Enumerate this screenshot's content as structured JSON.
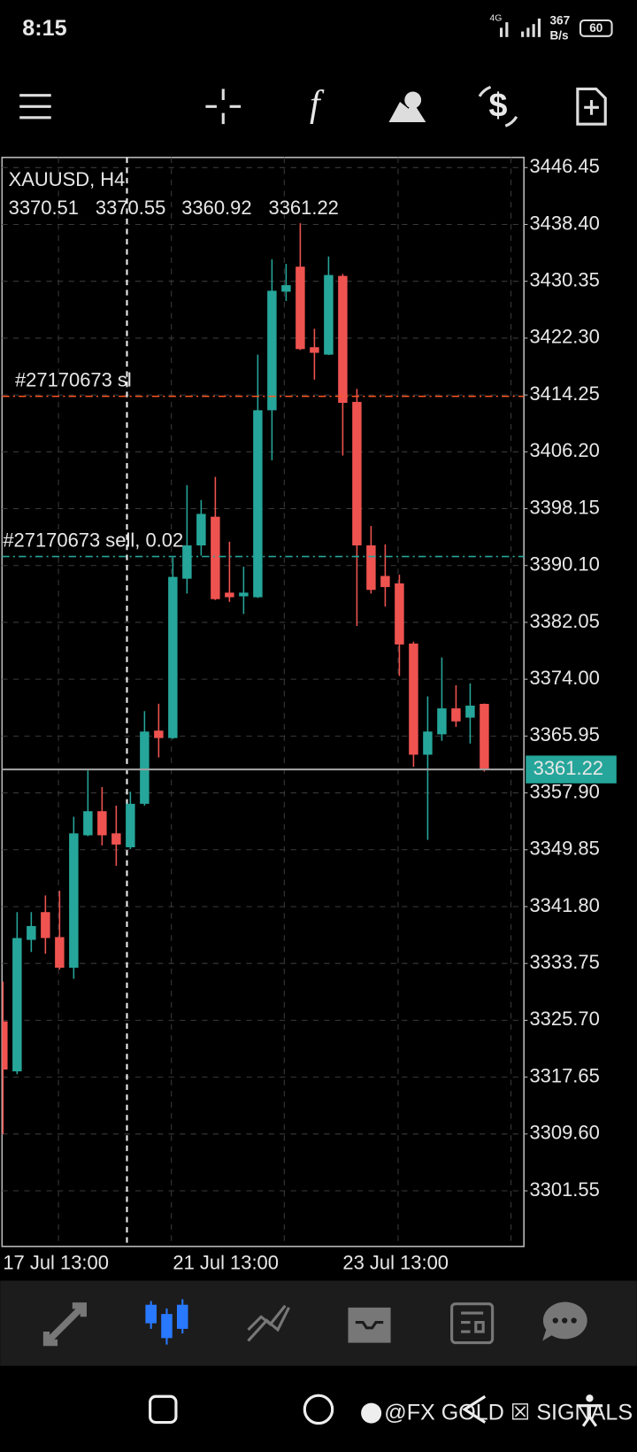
{
  "status_bar": {
    "time": "8:15",
    "network": "4G",
    "speed": "367",
    "speed_unit": "B/s",
    "battery": "60"
  },
  "chart_data": {
    "type": "candlestick",
    "title": "XAUUSD, H4",
    "categories": [
      "17 Jul 13:00",
      null,
      null,
      null,
      null,
      null,
      null,
      null,
      null,
      null,
      null,
      null,
      "21 Jul 13:00",
      null,
      null,
      null,
      null,
      null,
      null,
      null,
      null,
      null,
      null,
      null,
      "23 Jul 13:00",
      null,
      null,
      null,
      null,
      null,
      null,
      null,
      null,
      null,
      null
    ],
    "open": [
      3325.55,
      3318.47,
      3337.09,
      3341.02,
      3337.48,
      3333.15,
      3351.9,
      3355.31,
      3352.17,
      3350.2,
      3356.36,
      3366.72,
      3365.67,
      3388.23,
      3392.95,
      3397.01,
      3386.26,
      3385.74,
      3385.61,
      3412.09,
      3428.88,
      3432.42,
      3421.01,
      3419.96,
      3431.11,
      3413.27,
      3392.95,
      3388.62,
      3387.57,
      3379.05,
      3363.31,
      3366.2,
      3369.87,
      3368.56,
      3370.51
    ],
    "high": [
      3331.19,
      3341.02,
      3341.02,
      3343.38,
      3344.04,
      3354.53,
      3361.08,
      3358.72,
      3356.1,
      3358.07,
      3369.48,
      3370.53,
      3391.24,
      3401.47,
      3399.37,
      3402.65,
      3393.47,
      3389.93,
      3419.96,
      3433.47,
      3432.81,
      3438.58,
      3423.63,
      3433.86,
      3431.4,
      3415.11,
      3395.7,
      3393.08,
      3388.8,
      3379.31,
      3371.57,
      3377.08,
      3373.15,
      3373.41,
      3370.55
    ],
    "low": [
      3309.55,
      3318.07,
      3335.38,
      3335.12,
      3332.89,
      3331.58,
      3351.77,
      3350.46,
      3347.58,
      3349.95,
      3356.1,
      3362.92,
      3365.54,
      3386.13,
      3391.51,
      3385.21,
      3384.95,
      3383.24,
      3385.5,
      3405.01,
      3427.57,
      3420.62,
      3416.42,
      3419.9,
      3405.67,
      3381.54,
      3386.13,
      3384.29,
      3374.46,
      3361.61,
      3351.25,
      3365.28,
      3367.25,
      3364.89,
      3360.92
    ],
    "close": [
      3318.73,
      3337.35,
      3339.05,
      3337.35,
      3333.15,
      3352.17,
      3355.31,
      3351.9,
      3350.59,
      3356.36,
      3366.59,
      3365.67,
      3388.49,
      3392.95,
      3397.41,
      3385.34,
      3385.61,
      3386.26,
      3412.09,
      3429.01,
      3429.8,
      3420.75,
      3420.22,
      3431.24,
      3413.14,
      3392.95,
      3386.65,
      3387.05,
      3378.92,
      3363.31,
      3366.59,
      3369.87,
      3368.03,
      3370.26,
      3361.22
    ],
    "up_color": "#26a69a",
    "down_color": "#ef5350",
    "ylim": [
      3293.68,
      3447.89
    ],
    "yticks": [
      3446.45,
      {
        "value": 3438.4,
        "label": "3438.40"
      },
      3430.35,
      {
        "value": 3422.3,
        "label": "3422.30"
      },
      3414.25,
      {
        "value": 3406.2,
        "label": "3406.20"
      },
      3398.15,
      {
        "value": 3390.1,
        "label": "3390.10"
      },
      3382.05,
      {
        "value": 3374,
        "label": "3374.00"
      },
      3365.95,
      {
        "value": 3357.9,
        "label": "3357.90"
      },
      3349.85,
      {
        "value": 3341.8,
        "label": "3341.80"
      },
      3333.75,
      {
        "value": 3325.7,
        "label": "3325.70"
      },
      3317.65,
      {
        "value": 3309.6,
        "label": "3309.60"
      },
      3301.55
    ],
    "grid": true,
    "order_lines": [
      {
        "label": "#27170673 sl",
        "value": 3414.06,
        "color": "#ff5722"
      },
      {
        "label": "#27170673 sell, 0.02",
        "value": 3391.38,
        "color": "#26a69a"
      }
    ]
  },
  "watermark": "@FX GOLD ☒ SIGNALS"
}
